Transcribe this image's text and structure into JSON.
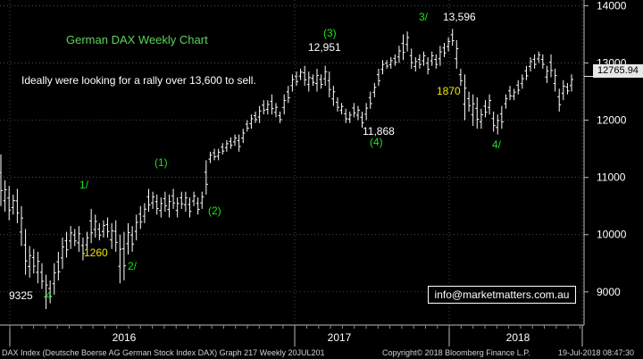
{
  "chart_data": {
    "type": "ohlc",
    "title": "German DAX Weekly Chart",
    "comment": "Ideally were looking for a rally over 13,600 to sell.",
    "yaxis": {
      "side": "right",
      "ticks": [
        9000,
        10000,
        11000,
        12000,
        13000,
        14000
      ]
    },
    "ylim": [
      8420,
      14100
    ],
    "xaxis": {
      "labels": [
        "2016",
        "2017",
        "2018"
      ]
    },
    "last_price_label": "12765.94",
    "last_price": 12765.94,
    "bars": [
      {
        "h": 11400,
        "l": 10500
      },
      {
        "h": 10950,
        "l": 10400
      },
      {
        "h": 10850,
        "l": 10250
      },
      {
        "h": 10700,
        "l": 10350
      },
      {
        "h": 10800,
        "l": 10200
      },
      {
        "h": 10500,
        "l": 9800
      },
      {
        "h": 10100,
        "l": 9300
      },
      {
        "h": 9800,
        "l": 9250
      },
      {
        "h": 9750,
        "l": 9320
      },
      {
        "h": 9700,
        "l": 9150
      },
      {
        "h": 9500,
        "l": 9050
      },
      {
        "h": 9300,
        "l": 8700
      },
      {
        "h": 9200,
        "l": 8800
      },
      {
        "h": 9500,
        "l": 8950
      },
      {
        "h": 9700,
        "l": 9200
      },
      {
        "h": 9950,
        "l": 9400
      },
      {
        "h": 10050,
        "l": 9600
      },
      {
        "h": 10150,
        "l": 9750
      },
      {
        "h": 10100,
        "l": 9800
      },
      {
        "h": 10150,
        "l": 9700
      },
      {
        "h": 9950,
        "l": 9550
      },
      {
        "h": 10050,
        "l": 9700
      },
      {
        "h": 10450,
        "l": 9850
      },
      {
        "h": 10350,
        "l": 9950
      },
      {
        "h": 10200,
        "l": 9900
      },
      {
        "h": 10250,
        "l": 9950
      },
      {
        "h": 10300,
        "l": 9950
      },
      {
        "h": 10200,
        "l": 9750
      },
      {
        "h": 10250,
        "l": 9700
      },
      {
        "h": 10000,
        "l": 9150
      },
      {
        "h": 10050,
        "l": 9200
      },
      {
        "h": 10200,
        "l": 9650
      },
      {
        "h": 10150,
        "l": 9700
      },
      {
        "h": 10350,
        "l": 9900
      },
      {
        "h": 10500,
        "l": 10100
      },
      {
        "h": 10550,
        "l": 10200
      },
      {
        "h": 10800,
        "l": 10400
      },
      {
        "h": 10750,
        "l": 10450
      },
      {
        "h": 10700,
        "l": 10350
      },
      {
        "h": 10650,
        "l": 10300
      },
      {
        "h": 10750,
        "l": 10400
      },
      {
        "h": 10700,
        "l": 10300
      },
      {
        "h": 10800,
        "l": 10450
      },
      {
        "h": 10650,
        "l": 10300
      },
      {
        "h": 10750,
        "l": 10450
      },
      {
        "h": 10750,
        "l": 10400
      },
      {
        "h": 10650,
        "l": 10300
      },
      {
        "h": 10750,
        "l": 10500
      },
      {
        "h": 10650,
        "l": 10350
      },
      {
        "h": 10750,
        "l": 10450
      },
      {
        "h": 11300,
        "l": 10700
      },
      {
        "h": 11450,
        "l": 11250
      },
      {
        "h": 11500,
        "l": 11300
      },
      {
        "h": 11500,
        "l": 11300
      },
      {
        "h": 11600,
        "l": 11400
      },
      {
        "h": 11650,
        "l": 11450
      },
      {
        "h": 11700,
        "l": 11500
      },
      {
        "h": 11750,
        "l": 11550
      },
      {
        "h": 11750,
        "l": 11450
      },
      {
        "h": 11850,
        "l": 11600
      },
      {
        "h": 12000,
        "l": 11800
      },
      {
        "h": 12100,
        "l": 11850
      },
      {
        "h": 12150,
        "l": 11950
      },
      {
        "h": 12250,
        "l": 11950
      },
      {
        "h": 12350,
        "l": 12100
      },
      {
        "h": 12350,
        "l": 12100
      },
      {
        "h": 12450,
        "l": 12100
      },
      {
        "h": 12300,
        "l": 12050
      },
      {
        "h": 12150,
        "l": 11950
      },
      {
        "h": 12450,
        "l": 12100
      },
      {
        "h": 12600,
        "l": 12300
      },
      {
        "h": 12800,
        "l": 12500
      },
      {
        "h": 12850,
        "l": 12600
      },
      {
        "h": 12900,
        "l": 12700
      },
      {
        "h": 12950,
        "l": 12600
      },
      {
        "h": 12850,
        "l": 12500
      },
      {
        "h": 12800,
        "l": 12600
      },
      {
        "h": 12900,
        "l": 12500
      },
      {
        "h": 12800,
        "l": 12550
      },
      {
        "h": 12951,
        "l": 12600
      },
      {
        "h": 12850,
        "l": 12400
      },
      {
        "h": 12600,
        "l": 12250
      },
      {
        "h": 12400,
        "l": 12150
      },
      {
        "h": 12300,
        "l": 12100
      },
      {
        "h": 12200,
        "l": 11950
      },
      {
        "h": 12150,
        "l": 11950
      },
      {
        "h": 12300,
        "l": 12050
      },
      {
        "h": 12250,
        "l": 12000
      },
      {
        "h": 12150,
        "l": 11868
      },
      {
        "h": 12300,
        "l": 12000
      },
      {
        "h": 12500,
        "l": 12200
      },
      {
        "h": 12650,
        "l": 12400
      },
      {
        "h": 12900,
        "l": 12600
      },
      {
        "h": 13050,
        "l": 12800
      },
      {
        "h": 13050,
        "l": 12900
      },
      {
        "h": 13100,
        "l": 12900
      },
      {
        "h": 13150,
        "l": 12950
      },
      {
        "h": 13300,
        "l": 13000
      },
      {
        "h": 13500,
        "l": 13050
      },
      {
        "h": 13550,
        "l": 13200
      },
      {
        "h": 13250,
        "l": 12900
      },
      {
        "h": 13100,
        "l": 12850
      },
      {
        "h": 13150,
        "l": 12900
      },
      {
        "h": 13200,
        "l": 12950
      },
      {
        "h": 13100,
        "l": 12800
      },
      {
        "h": 13200,
        "l": 12950
      },
      {
        "h": 13150,
        "l": 12900
      },
      {
        "h": 13300,
        "l": 12950
      },
      {
        "h": 13350,
        "l": 13100
      },
      {
        "h": 13450,
        "l": 13200
      },
      {
        "h": 13596,
        "l": 13300
      },
      {
        "h": 13400,
        "l": 12900
      },
      {
        "h": 12900,
        "l": 12600
      },
      {
        "h": 12800,
        "l": 12000
      },
      {
        "h": 12500,
        "l": 12150
      },
      {
        "h": 12450,
        "l": 11900
      },
      {
        "h": 12400,
        "l": 11850
      },
      {
        "h": 12200,
        "l": 11850
      },
      {
        "h": 12350,
        "l": 12050
      },
      {
        "h": 12450,
        "l": 12100
      },
      {
        "h": 12150,
        "l": 11800
      },
      {
        "h": 12100,
        "l": 11750
      },
      {
        "h": 12250,
        "l": 11850
      },
      {
        "h": 12450,
        "l": 12200
      },
      {
        "h": 12600,
        "l": 12350
      },
      {
        "h": 12550,
        "l": 12350
      },
      {
        "h": 12700,
        "l": 12450
      },
      {
        "h": 12800,
        "l": 12550
      },
      {
        "h": 12950,
        "l": 12700
      },
      {
        "h": 13100,
        "l": 12850
      },
      {
        "h": 13150,
        "l": 12900
      },
      {
        "h": 13200,
        "l": 13000
      },
      {
        "h": 13150,
        "l": 12900
      },
      {
        "h": 12950,
        "l": 12650
      },
      {
        "h": 13150,
        "l": 12750
      },
      {
        "h": 12900,
        "l": 12500
      },
      {
        "h": 12550,
        "l": 12150
      },
      {
        "h": 12700,
        "l": 12350
      },
      {
        "h": 12650,
        "l": 12450
      },
      {
        "h": 12800,
        "l": 12500
      }
    ],
    "annotations": [
      {
        "text": "9325",
        "kind": "price",
        "color": "white"
      },
      {
        "text": "4",
        "kind": "wave",
        "color": "green"
      },
      {
        "text": "1/",
        "kind": "wave",
        "color": "green"
      },
      {
        "text": "1260",
        "kind": "note",
        "color": "yellow"
      },
      {
        "text": "2/",
        "kind": "wave",
        "color": "green"
      },
      {
        "text": "(1)",
        "kind": "wave",
        "color": "green"
      },
      {
        "text": "(2)",
        "kind": "wave",
        "color": "green"
      },
      {
        "text": "(3)",
        "kind": "wave",
        "color": "green"
      },
      {
        "text": "12,951",
        "kind": "price",
        "color": "white"
      },
      {
        "text": "11,868",
        "kind": "price",
        "color": "white"
      },
      {
        "text": "(4)",
        "kind": "wave",
        "color": "green"
      },
      {
        "text": "3/",
        "kind": "wave",
        "color": "green"
      },
      {
        "text": "13,596",
        "kind": "price",
        "color": "white"
      },
      {
        "text": "1870",
        "kind": "note",
        "color": "yellow"
      },
      {
        "text": "4/",
        "kind": "wave",
        "color": "green"
      }
    ]
  },
  "contact": "info@marketmatters.com.au",
  "footer": {
    "left": "DAX Index (Deutsche Boerse AG German Stock Index DAX) Graph 217  Weekly 20JUL201",
    "copyright": "Copyright© 2018 Bloomberg Finance L.P.",
    "timestamp": "19-Jul-2018 08:47:30"
  }
}
